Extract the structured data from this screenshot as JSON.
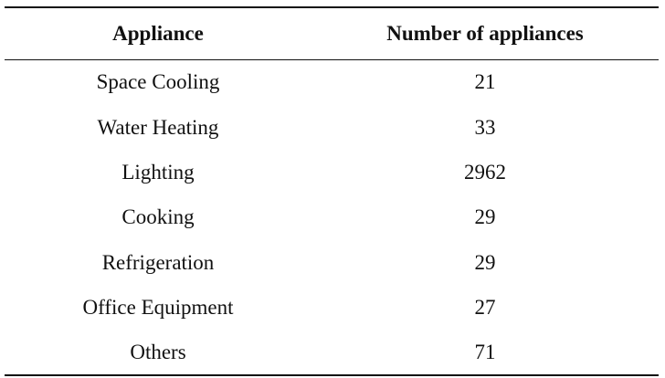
{
  "table": {
    "headers": [
      "Appliance",
      "Number of appliances"
    ],
    "rows": [
      [
        "Space Cooling",
        "21"
      ],
      [
        "Water Heating",
        "33"
      ],
      [
        "Lighting",
        "2962"
      ],
      [
        "Cooking",
        "29"
      ],
      [
        "Refrigeration",
        "29"
      ],
      [
        "Office Equipment",
        "27"
      ],
      [
        "Others",
        "71"
      ]
    ]
  }
}
